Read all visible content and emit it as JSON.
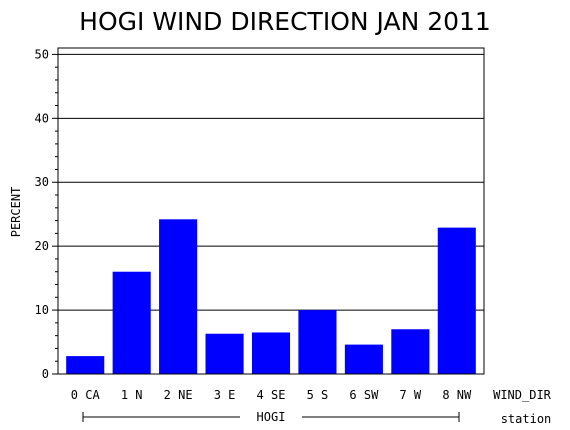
{
  "chart_data": {
    "type": "bar",
    "title": "HOGI WIND DIRECTION JAN 2011",
    "ylabel": "PERCENT",
    "xlabel": "WIND_DIR",
    "group_label": "HOGI",
    "group_axis_label": "station",
    "categories": [
      "0 CA",
      "1 N",
      "2 NE",
      "3 E",
      "4 SE",
      "5 S",
      "6 SW",
      "7 W",
      "8 NW"
    ],
    "values": [
      2.8,
      16.0,
      24.2,
      6.3,
      6.5,
      10.0,
      4.6,
      7.0,
      22.9
    ],
    "ylim": [
      0,
      51
    ],
    "yticks": [
      0,
      10,
      20,
      30,
      40,
      50
    ],
    "grid": true,
    "bar_color": "#0000ff"
  }
}
